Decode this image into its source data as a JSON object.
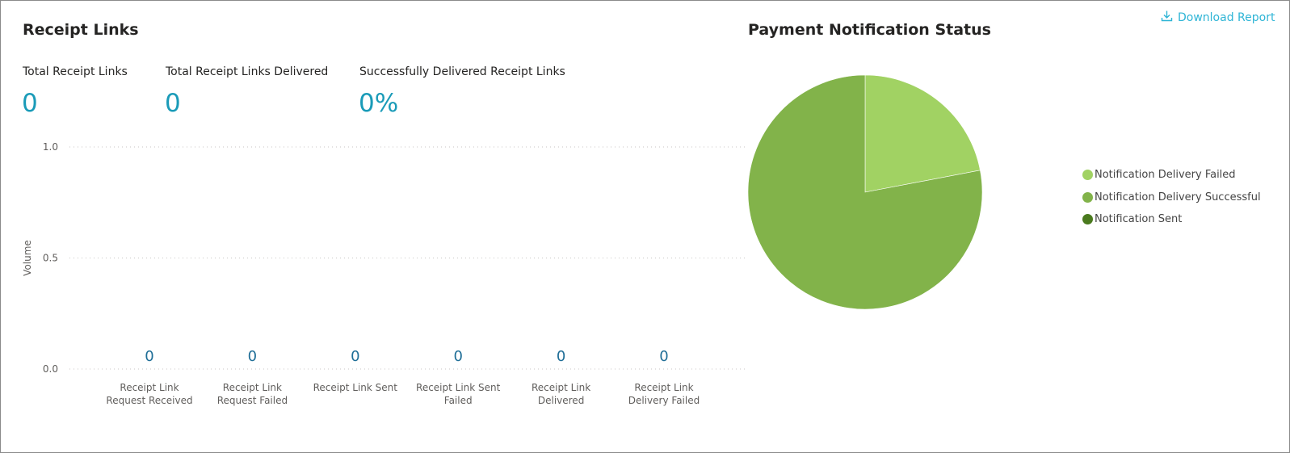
{
  "receipt_panel": {
    "title": "Receipt Links",
    "kpis": [
      {
        "label": "Total Receipt Links",
        "value": "0"
      },
      {
        "label": "Total Receipt Links Delivered",
        "value": "0"
      },
      {
        "label": "Successfully Delivered Receipt Links",
        "value": "0%"
      }
    ]
  },
  "payment_panel": {
    "title": "Payment Notification Status",
    "download_label": "Download Report"
  },
  "colors": {
    "accent": "#1a9bb8",
    "link": "#2fb5d6",
    "data_label": "#1f6e97",
    "pie_failed": "#a1d263",
    "pie_successful": "#82b34a",
    "pie_sent": "#4a7a1e"
  },
  "chart_data": [
    {
      "type": "bar",
      "title": "",
      "ylabel": "Volume",
      "xlabel": "",
      "ylim": [
        0,
        1
      ],
      "yticks": [
        "1.0",
        "0.5",
        "0.0"
      ],
      "grid": true,
      "categories": [
        [
          "Receipt Link",
          "Request Received"
        ],
        [
          "Receipt Link",
          "Request Failed"
        ],
        [
          "Receipt Link Sent"
        ],
        [
          "Receipt Link Sent",
          "Failed"
        ],
        [
          "Receipt Link",
          "Delivered"
        ],
        [
          "Receipt Link",
          "Delivery Failed"
        ]
      ],
      "values": [
        0,
        0,
        0,
        0,
        0,
        0
      ],
      "data_labels": [
        "0",
        "0",
        "0",
        "0",
        "0",
        "0"
      ]
    },
    {
      "type": "pie",
      "title": "Payment Notification Status",
      "legend_position": "right",
      "series": [
        {
          "name": "Notification Delivery Failed",
          "value": 22,
          "color": "#a1d263"
        },
        {
          "name": "Notification Delivery Successful",
          "value": 78,
          "color": "#82b34a"
        },
        {
          "name": "Notification Sent",
          "value": 0,
          "color": "#4a7a1e"
        }
      ]
    }
  ]
}
